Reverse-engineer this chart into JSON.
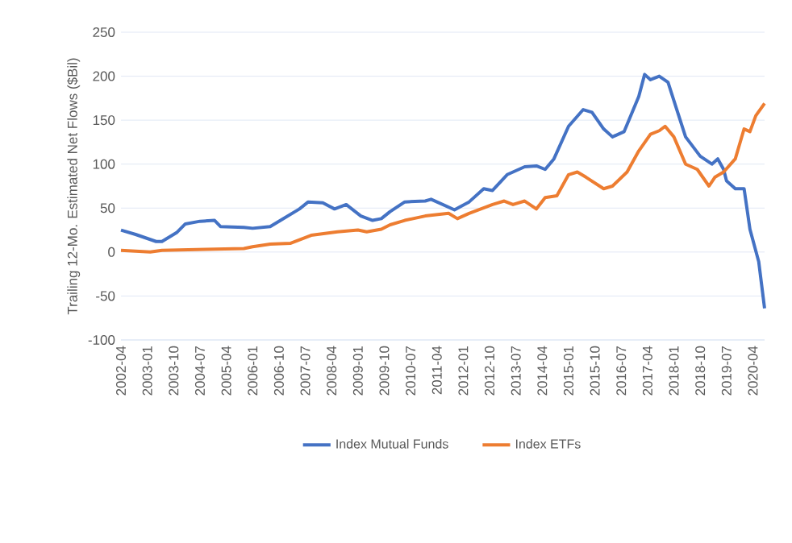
{
  "chart_data": {
    "type": "line",
    "ylabel": "Trailing 12-Mo. Estimated Net Flows ($Bil)",
    "xlim": [
      "2002-04",
      "2020-08"
    ],
    "ylim": [
      -100,
      250
    ],
    "yticks": [
      -100,
      -50,
      0,
      50,
      100,
      150,
      200,
      250
    ],
    "xticks": [
      "2002-04",
      "2003-01",
      "2003-10",
      "2004-07",
      "2005-04",
      "2006-01",
      "2006-10",
      "2007-07",
      "2008-04",
      "2009-01",
      "2009-10",
      "2010-07",
      "2011-04",
      "2012-01",
      "2012-10",
      "2013-07",
      "2014-04",
      "2015-01",
      "2015-10",
      "2016-07",
      "2017-04",
      "2018-01",
      "2018-10",
      "2019-07",
      "2020-04"
    ],
    "grid": "y",
    "legend": "bottom",
    "series": [
      {
        "name": "Index Mutual Funds",
        "color": "#4472c4",
        "x": [
          "2002-04",
          "2002-09",
          "2003-04",
          "2003-06",
          "2003-11",
          "2004-02",
          "2004-07",
          "2004-12",
          "2005-02",
          "2005-10",
          "2006-01",
          "2006-07",
          "2006-11",
          "2007-05",
          "2007-08",
          "2008-01",
          "2008-05",
          "2008-09",
          "2009-02",
          "2009-06",
          "2009-09",
          "2009-12",
          "2010-05",
          "2010-12",
          "2011-02",
          "2011-06",
          "2011-10",
          "2012-03",
          "2012-08",
          "2012-11",
          "2013-04",
          "2013-10",
          "2014-02",
          "2014-05",
          "2014-08",
          "2015-01",
          "2015-06",
          "2015-09",
          "2016-01",
          "2016-04",
          "2016-08",
          "2017-01",
          "2017-03",
          "2017-05",
          "2017-08",
          "2017-11",
          "2018-02",
          "2018-05",
          "2018-10",
          "2019-02",
          "2019-04",
          "2019-06",
          "2019-07",
          "2019-10",
          "2020-01",
          "2020-03",
          "2020-06",
          "2020-08"
        ],
        "values": [
          25,
          20,
          12,
          12,
          22,
          32,
          35,
          36,
          29,
          28,
          27,
          29,
          37,
          49,
          57,
          56,
          49,
          54,
          41,
          36,
          38,
          46,
          57,
          58,
          60,
          54,
          48,
          57,
          72,
          70,
          88,
          97,
          98,
          94,
          106,
          143,
          162,
          159,
          140,
          131,
          137,
          177,
          202,
          196,
          200,
          193,
          162,
          131,
          109,
          100,
          106,
          94,
          81,
          72,
          72,
          26,
          -11,
          -64
        ]
      },
      {
        "name": "Index ETFs",
        "color": "#ed7d31",
        "x": [
          "2002-04",
          "2003-02",
          "2003-06",
          "2004-09",
          "2005-10",
          "2006-01",
          "2006-07",
          "2007-02",
          "2007-09",
          "2008-06",
          "2009-01",
          "2009-04",
          "2009-09",
          "2009-12",
          "2010-05",
          "2010-12",
          "2011-08",
          "2011-11",
          "2012-03",
          "2012-11",
          "2013-03",
          "2013-06",
          "2013-10",
          "2014-02",
          "2014-05",
          "2014-09",
          "2015-01",
          "2015-04",
          "2015-07",
          "2016-01",
          "2016-04",
          "2016-09",
          "2017-01",
          "2017-05",
          "2017-08",
          "2017-10",
          "2018-01",
          "2018-05",
          "2018-09",
          "2019-01",
          "2019-03",
          "2019-06",
          "2019-10",
          "2020-01",
          "2020-03",
          "2020-05",
          "2020-08"
        ],
        "values": [
          2,
          0,
          2,
          3,
          4,
          6,
          9,
          10,
          19,
          23,
          25,
          23,
          26,
          31,
          36,
          41,
          44,
          38,
          44,
          54,
          58,
          54,
          58,
          49,
          62,
          64,
          88,
          91,
          85,
          72,
          75,
          91,
          115,
          134,
          138,
          143,
          131,
          100,
          94,
          75,
          85,
          91,
          106,
          140,
          137,
          155,
          169
        ]
      }
    ]
  }
}
